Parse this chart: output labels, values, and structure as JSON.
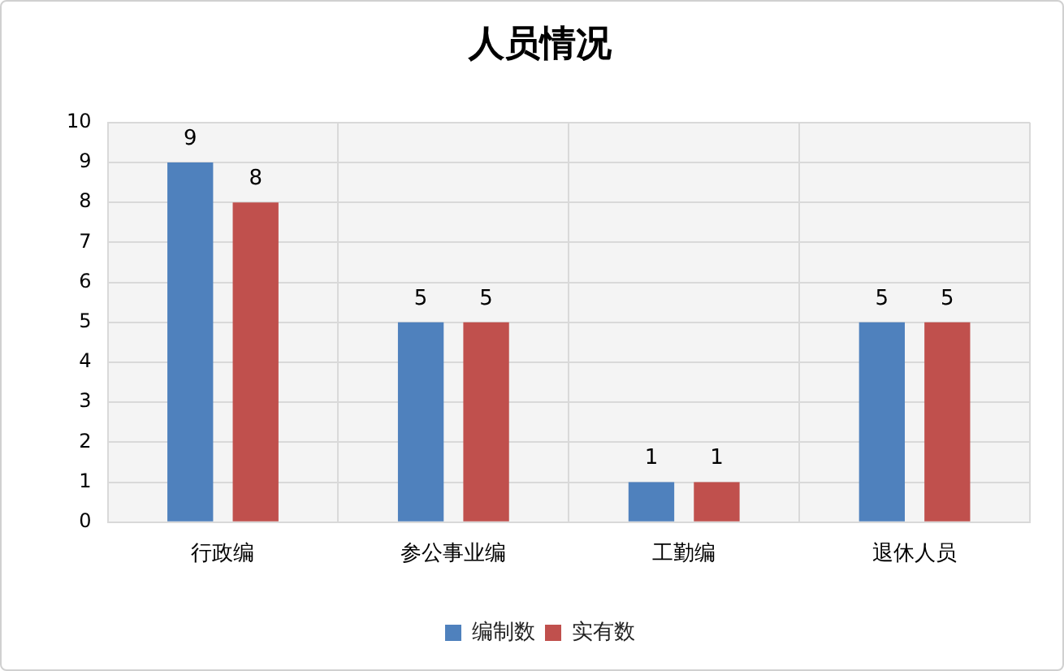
{
  "chart_data": {
    "type": "bar",
    "title": "人员情况",
    "categories": [
      "行政编",
      "参公事业编",
      "工勤编",
      "退休人员"
    ],
    "series": [
      {
        "name": "编制数",
        "color": "#4f81bd",
        "values": [
          9,
          5,
          1,
          5
        ]
      },
      {
        "name": "实有数",
        "color": "#c0504d",
        "values": [
          8,
          5,
          1,
          5
        ]
      }
    ],
    "ylim": [
      0,
      10
    ],
    "yticks": [
      0,
      1,
      2,
      3,
      4,
      5,
      6,
      7,
      8,
      9,
      10
    ],
    "grid": true,
    "legend": "bottom",
    "data_labels": true
  }
}
